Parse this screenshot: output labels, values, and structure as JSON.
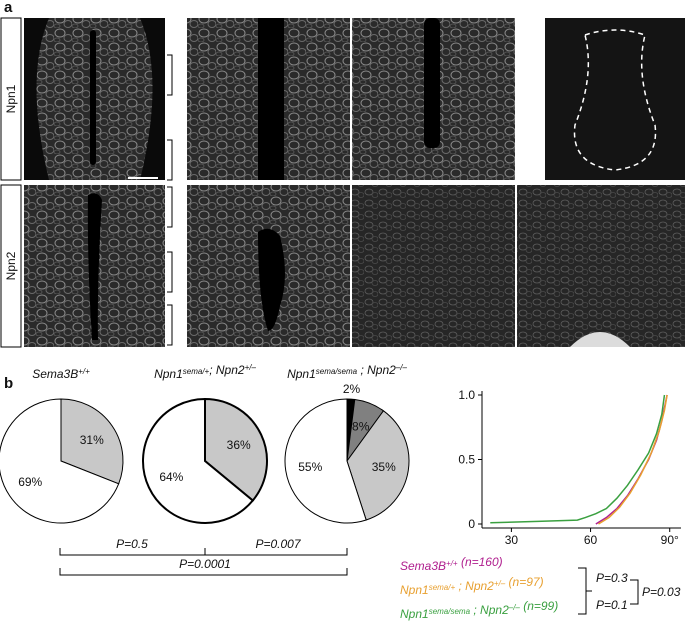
{
  "panel_labels": [
    "a",
    "b"
  ],
  "row_labels": [
    "Npn1",
    "Npn2"
  ],
  "chart_data": [
    {
      "type": "pie",
      "title": [
        "Sema3B",
        {
          "sup": "+/+"
        }
      ],
      "values": [
        31,
        69
      ],
      "value_labels": [
        "31%",
        "69%"
      ],
      "colors": [
        "#c8c8c8",
        "#ffffff"
      ]
    },
    {
      "type": "pie",
      "title": [
        "Npn1",
        {
          "sup": "sema/+"
        },
        "; Npn2",
        {
          "sup": "+/–"
        }
      ],
      "values": [
        36,
        64
      ],
      "value_labels": [
        "36%",
        "64%"
      ],
      "colors": [
        "#c8c8c8",
        "#ffffff"
      ]
    },
    {
      "type": "pie",
      "title": [
        "Npn1",
        {
          "sup": "sema/sema"
        },
        " ; Npn2",
        {
          "sup": "–/–"
        }
      ],
      "values": [
        2,
        8,
        35,
        55
      ],
      "value_labels": [
        "2%",
        "8%",
        "35%",
        "55%"
      ],
      "colors": [
        "#000000",
        "#808080",
        "#c8c8c8",
        "#ffffff"
      ]
    },
    {
      "type": "line",
      "xlim": [
        20,
        92
      ],
      "xticks": [
        30,
        60,
        {
          "value": 90,
          "label": "90°"
        }
      ],
      "ylim": [
        0,
        1
      ],
      "yticks": [
        0,
        0.5,
        {
          "value": 1,
          "label": "1.0"
        }
      ],
      "series": [
        {
          "name": [
            "Sema3B",
            {
              "sup": "+/+"
            },
            " (n=160)"
          ],
          "color": "#b0208f",
          "x": [
            62,
            66,
            70,
            74,
            78,
            82,
            85,
            87,
            89
          ],
          "values": [
            0,
            0.05,
            0.12,
            0.22,
            0.35,
            0.5,
            0.65,
            0.8,
            1.0
          ]
        },
        {
          "name": [
            "Npn1",
            {
              "sup": "sema/+"
            },
            " ; Npn2",
            {
              "sup": "+/–"
            },
            " (n=97)"
          ],
          "color": "#e8a030",
          "x": [
            63,
            67,
            71,
            75,
            79,
            83,
            86,
            88,
            89
          ],
          "values": [
            0,
            0.05,
            0.13,
            0.24,
            0.38,
            0.55,
            0.72,
            0.88,
            1.0
          ]
        },
        {
          "name": [
            "Npn1",
            {
              "sup": "sema/sema"
            },
            " ; Npn2",
            {
              "sup": "–/–"
            },
            " (n=99)"
          ],
          "color": "#3aa040",
          "x": [
            22,
            40,
            55,
            58,
            62,
            66,
            70,
            74,
            78,
            82,
            85,
            87,
            88
          ],
          "values": [
            0.01,
            0.02,
            0.03,
            0.05,
            0.08,
            0.12,
            0.2,
            0.3,
            0.42,
            0.55,
            0.7,
            0.85,
            1.0
          ]
        }
      ]
    }
  ],
  "pie_comparisons": [
    "P=0.5",
    "P=0.007",
    "P=0.0001"
  ],
  "line_comparisons": [
    "P=0.3",
    "P=0.1",
    "P=0.03"
  ]
}
